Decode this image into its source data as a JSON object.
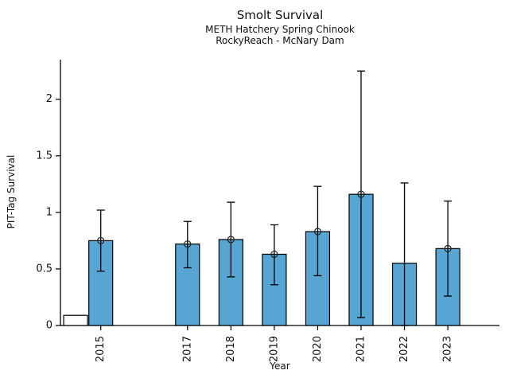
{
  "chart_data": {
    "type": "bar",
    "title": "Smolt Survival",
    "subtitle": [
      "METH Hatchery Spring Chinook",
      "RockyReach - McNary Dam"
    ],
    "xlabel": "Year",
    "ylabel": "PIT-Tag Survival",
    "categories": [
      2015,
      2017,
      2018,
      2019,
      2020,
      2021,
      2022,
      2023
    ],
    "values": [
      0.75,
      0.72,
      0.76,
      0.63,
      0.83,
      1.16,
      0.55,
      0.68
    ],
    "error_low": [
      0.48,
      0.51,
      0.43,
      0.36,
      0.44,
      0.07,
      0.0,
      0.26
    ],
    "error_high": [
      1.02,
      0.92,
      1.09,
      0.89,
      1.23,
      2.25,
      1.26,
      1.1
    ],
    "has_marker": [
      true,
      true,
      true,
      true,
      true,
      true,
      false,
      true
    ],
    "extra_unlabeled_bar": {
      "value": 0.09,
      "filled": false
    },
    "yticks": [
      0,
      0.5,
      1,
      1.5,
      2
    ],
    "ytick_labels": [
      "0",
      "0.5",
      "1",
      "1.5",
      "2"
    ],
    "ylim": [
      0,
      2.35
    ],
    "grid": false,
    "legend": null,
    "bar_color": "#56a5d3",
    "bar_edge_color": "#000000",
    "error_color": "#000000",
    "background": "#ffffff"
  }
}
